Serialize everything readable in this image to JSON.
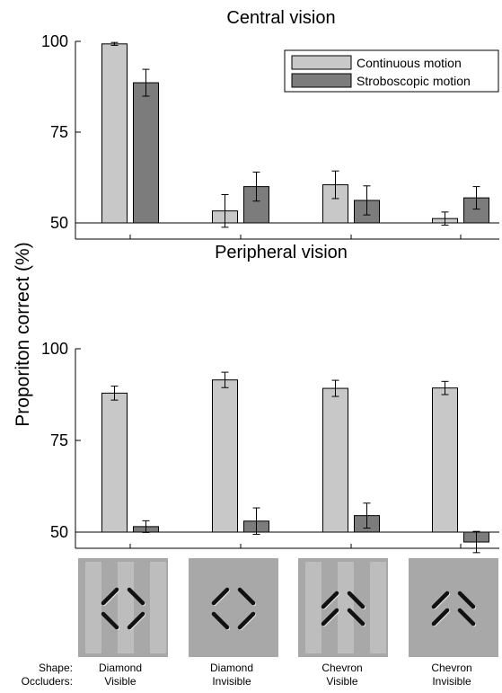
{
  "y_axis_label": "Proporiton correct (%)",
  "colors": {
    "continuous": "#c8c8c8",
    "stroboscopic": "#7c7c7c",
    "stimulus_bg": "#a8a8a8",
    "occluder": "#bdbdbd",
    "edge_dark": "#111111",
    "edge_light": "#e9e9e9"
  },
  "legend": [
    "Continuous motion",
    "Stroboscopic motion"
  ],
  "chart_data": [
    {
      "type": "bar",
      "title": "Central vision",
      "ylim": [
        50,
        100
      ],
      "yticks": [
        50,
        75,
        100
      ],
      "categories": [
        "Diamond Visible",
        "Diamond Invisible",
        "Chevron Visible",
        "Chevron Invisible"
      ],
      "series": [
        {
          "name": "Continuous motion",
          "values": [
            99.3,
            53.3,
            60.5,
            51.2
          ],
          "errors": [
            0.4,
            4.5,
            3.8,
            1.8
          ]
        },
        {
          "name": "Stroboscopic motion",
          "values": [
            88.6,
            60.0,
            56.2,
            56.9
          ],
          "errors": [
            3.7,
            4.0,
            4.0,
            3.1
          ]
        }
      ],
      "legend_position": "top-right"
    },
    {
      "type": "bar",
      "title": "Peripheral vision",
      "ylim": [
        50,
        100
      ],
      "yticks": [
        50,
        75,
        100
      ],
      "categories": [
        "Diamond Visible",
        "Diamond Invisible",
        "Chevron Visible",
        "Chevron Invisible"
      ],
      "series": [
        {
          "name": "Continuous motion",
          "values": [
            87.9,
            91.5,
            89.2,
            89.3
          ],
          "errors": [
            1.9,
            2.1,
            2.2,
            1.8
          ]
        },
        {
          "name": "Stroboscopic motion",
          "values": [
            51.5,
            53.0,
            54.5,
            47.3
          ],
          "errors": [
            1.6,
            3.6,
            3.4,
            2.9
          ]
        }
      ]
    }
  ],
  "stimuli": [
    {
      "shape": "Diamond",
      "occluders": "Visible"
    },
    {
      "shape": "Diamond",
      "occluders": "Invisible"
    },
    {
      "shape": "Chevron",
      "occluders": "Visible"
    },
    {
      "shape": "Chevron",
      "occluders": "Invisible"
    }
  ],
  "row_labels": {
    "shape": "Shape:",
    "occluders": "Occluders:"
  }
}
